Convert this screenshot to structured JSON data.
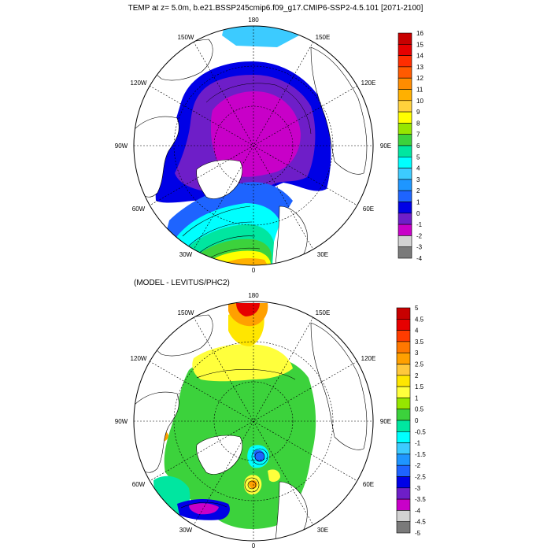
{
  "title": "TEMP at z=   5.0m, b.e21.BSSP245cmip6.f09_g17.CMIP6-SSP2-4.5.101 [2071-2100]",
  "panels": [
    {
      "label": "",
      "meridians": [
        "180",
        "150E",
        "120E",
        "90E",
        "60E",
        "30E",
        "0",
        "30W",
        "60W",
        "90W",
        "120W",
        "150W"
      ],
      "colorbar": {
        "labels": [
          "16",
          "15",
          "14",
          "13",
          "12",
          "11",
          "10",
          "9",
          "8",
          "7",
          "6",
          "5",
          "4",
          "3",
          "2",
          "1",
          "0",
          "-1",
          "-2",
          "-3",
          "-4"
        ],
        "colors": [
          "#c80000",
          "#e60000",
          "#ff2d00",
          "#ff5a00",
          "#ff8c00",
          "#ffb000",
          "#ffd23c",
          "#ffff00",
          "#96e600",
          "#3cd23c",
          "#00e6a0",
          "#00ffff",
          "#3ccbff",
          "#1e96ff",
          "#1e64ff",
          "#0000e6",
          "#6e1ec8",
          "#c800c8",
          "#d2d2d2",
          "#7a7a7a"
        ]
      }
    },
    {
      "label": "(MODEL - LEVITUS/PHC2)",
      "meridians": [
        "180",
        "150E",
        "120E",
        "90E",
        "60E",
        "30E",
        "0",
        "30W",
        "60W",
        "90W",
        "120W",
        "150W"
      ],
      "colorbar": {
        "labels": [
          "5",
          "4.5",
          "4",
          "3.5",
          "3",
          "2.5",
          "2",
          "1.5",
          "1",
          "0.5",
          "0",
          "-0.5",
          "-1",
          "-1.5",
          "-2",
          "-2.5",
          "-3",
          "-3.5",
          "-4",
          "-4.5",
          "-5"
        ],
        "colors": [
          "#c80000",
          "#e60000",
          "#ff3c00",
          "#ff7800",
          "#ffa000",
          "#ffc83c",
          "#ffe600",
          "#ffff3c",
          "#96e600",
          "#3cd23c",
          "#00e6a0",
          "#00ffff",
          "#3ccbff",
          "#1e96ff",
          "#1e64ff",
          "#0000e6",
          "#6e1ec8",
          "#c800c8",
          "#d2d2d2",
          "#7a7a7a"
        ]
      }
    }
  ]
}
